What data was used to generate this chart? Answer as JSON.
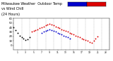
{
  "title": "Milwaukee Weather  Outdoor Temp",
  "title2": "vs Wind Chill",
  "title3": "(24 Hours)",
  "title_fontsize": 3.5,
  "background_color": "#ffffff",
  "plot_bg": "#ffffff",
  "grid_color": "#aaaaaa",
  "ylim": [
    -10,
    60
  ],
  "xlim": [
    0,
    24
  ],
  "yticks": [
    0,
    10,
    20,
    30,
    40,
    50,
    60
  ],
  "ytick_labels": [
    "0",
    "10",
    "20",
    "30",
    "40",
    "50",
    "60"
  ],
  "xtick_vals": [
    1,
    3,
    5,
    7,
    9,
    11,
    13,
    15,
    17,
    19,
    21,
    23
  ],
  "xtick_labels": [
    "1",
    "3",
    "5",
    "7",
    "9",
    "11",
    "13",
    "15",
    "17",
    "19",
    "21",
    "23"
  ],
  "vgrid_positions": [
    2,
    4,
    6,
    8,
    10,
    12,
    14,
    16,
    18,
    20,
    22,
    24
  ],
  "temp_color": "#dd0000",
  "wc_color": "#0000cc",
  "black_color": "#000000",
  "marker_size": 1.8,
  "legend_blue": [
    0.6,
    0.895,
    0.17,
    0.072
  ],
  "legend_red": [
    0.77,
    0.895,
    0.17,
    0.072
  ],
  "temp_x": [
    4.5,
    5,
    5.5,
    6,
    6.5,
    7,
    7.5,
    8,
    8.5,
    9,
    9.5,
    10,
    10.5,
    11,
    11.5,
    12,
    12.5,
    13,
    13.5,
    14,
    14.5,
    15,
    15.5,
    16,
    16.5,
    17,
    17.5,
    18,
    18.5,
    19,
    19.5,
    20,
    20.5,
    21
  ],
  "temp_y": [
    30,
    32,
    34,
    36,
    38,
    40,
    42,
    44,
    46,
    48,
    46,
    44,
    42,
    40,
    38,
    36,
    34,
    32,
    30,
    28,
    26,
    24,
    22,
    20,
    18,
    16,
    14,
    12,
    10,
    8,
    6,
    10,
    15,
    20
  ],
  "wc_x": [
    7,
    7.5,
    8,
    8.5,
    9,
    9.5,
    10,
    10.5,
    11,
    11.5,
    12,
    12.5,
    13,
    13.5,
    14
  ],
  "wc_y": [
    28,
    30,
    32,
    34,
    36,
    34,
    32,
    30,
    28,
    26,
    24,
    22,
    20,
    18,
    16
  ],
  "black_x": [
    0,
    0.5,
    1,
    1.5,
    2,
    2.5,
    3,
    3.5,
    4
  ],
  "black_y": [
    40,
    34,
    28,
    22,
    18,
    15,
    12,
    14,
    18
  ]
}
